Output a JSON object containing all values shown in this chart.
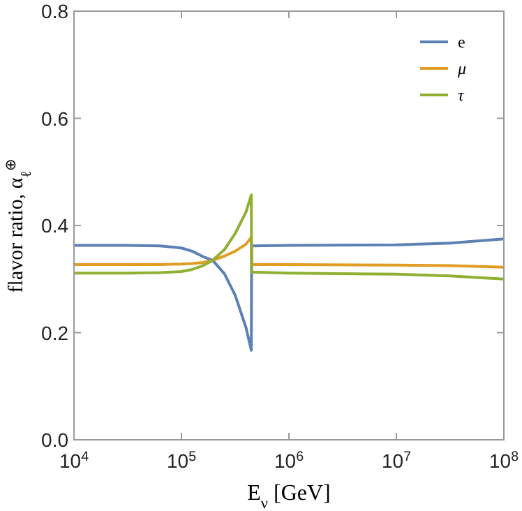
{
  "chart_data": {
    "type": "line",
    "xlabel": "E$_{ν}$ [GeV]",
    "ylabel": "flavor ratio, α$_{ℓ}$$^{⊕}$",
    "log": "x",
    "grid": false,
    "legend": "top right",
    "marker": "none",
    "line_style": "solid",
    "x": [
      10000,
      31623,
      63096,
      100000,
      125893,
      158489,
      194984,
      251189,
      316228,
      398107,
      446684,
      450000,
      1000000,
      10000000,
      31623000,
      100000000
    ],
    "series": [
      {
        "name": "e",
        "color": "#5e81b5",
        "values": [
          0.363,
          0.363,
          0.362,
          0.358,
          0.352,
          0.342,
          0.335,
          0.31,
          0.27,
          0.21,
          0.167,
          0.362,
          0.363,
          0.364,
          0.367,
          0.375
        ]
      },
      {
        "name": "μ",
        "color": "#e19c24",
        "values": [
          0.327,
          0.327,
          0.327,
          0.328,
          0.329,
          0.331,
          0.335,
          0.343,
          0.352,
          0.365,
          0.378,
          0.327,
          0.327,
          0.326,
          0.325,
          0.322
        ]
      },
      {
        "name": "τ",
        "color": "#8fb032",
        "values": [
          0.311,
          0.311,
          0.312,
          0.314,
          0.318,
          0.325,
          0.335,
          0.355,
          0.385,
          0.425,
          0.457,
          0.313,
          0.311,
          0.309,
          0.306,
          0.3
        ]
      }
    ],
    "xlim": [
      10000,
      100000000
    ],
    "xticks": [
      {
        "value": 10000,
        "label": "10$^{4}$"
      },
      {
        "value": 100000,
        "label": "10$^{5}$"
      },
      {
        "value": 1000000,
        "label": "10$^{6}$"
      },
      {
        "value": 10000000,
        "label": "10$^{7}$"
      },
      {
        "value": 100000000,
        "label": "10$^{8}$"
      }
    ],
    "ylim": [
      0,
      0.8
    ],
    "yticks": [
      {
        "value": 0,
        "label": "0.0"
      },
      {
        "value": 0.2,
        "label": "0.2"
      },
      {
        "value": 0.4,
        "label": "0.4"
      },
      {
        "value": 0.6,
        "label": "0.6"
      },
      {
        "value": 0.8,
        "label": "0.8"
      }
    ]
  }
}
